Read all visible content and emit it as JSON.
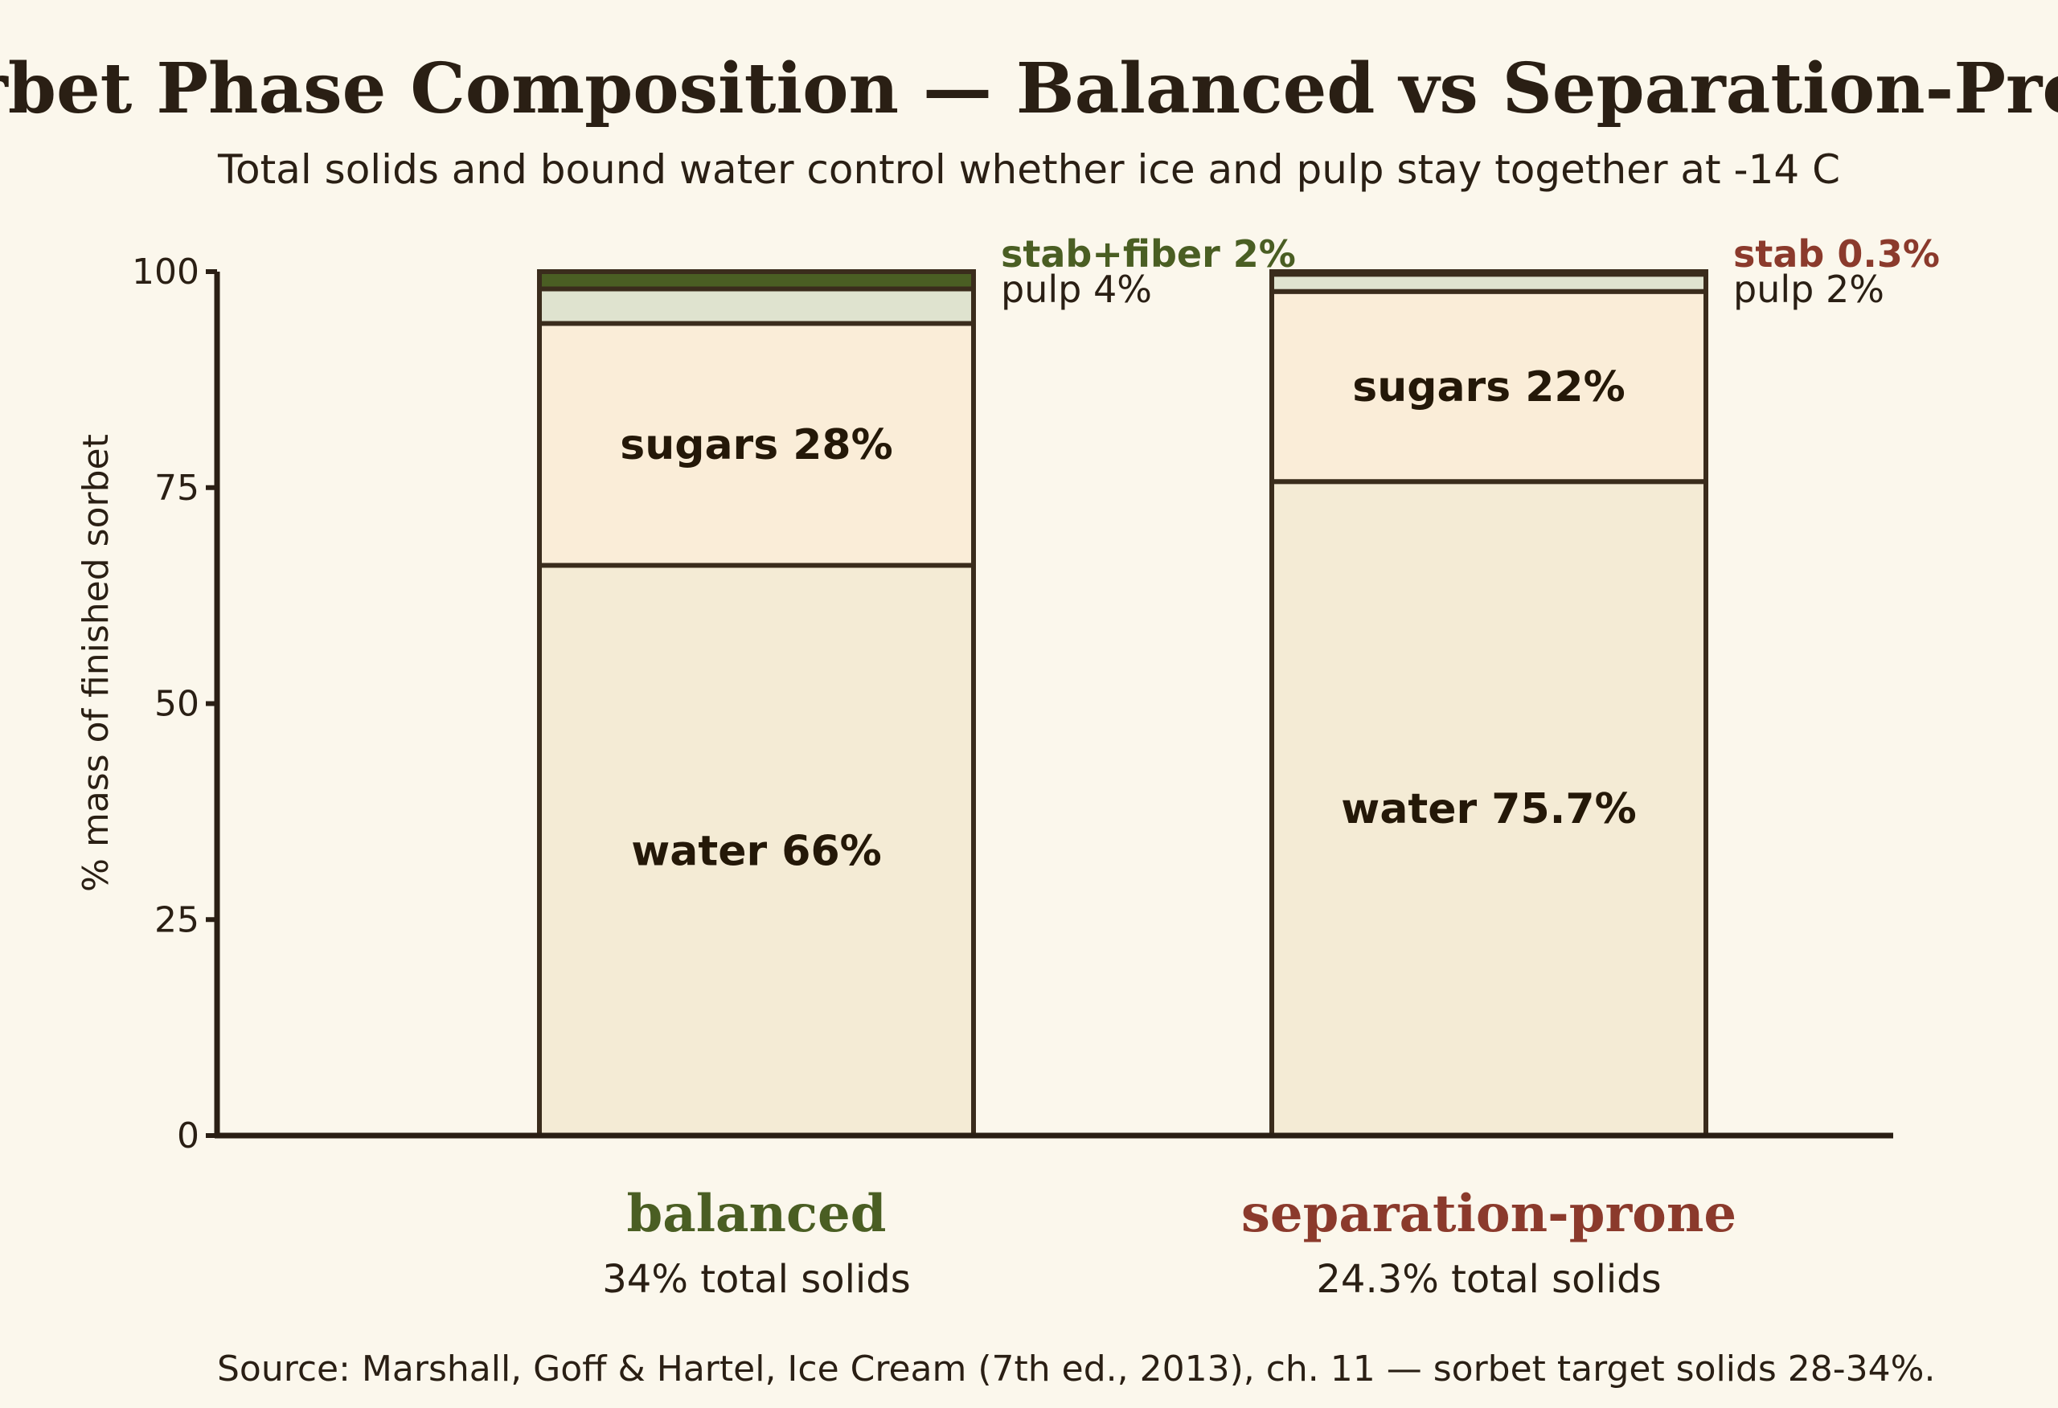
{
  "chart_data": {
    "type": "bar",
    "stacked": true,
    "title": "Sorbet Phase Composition — Balanced vs Separation-Prone",
    "subtitle": "Total solids and bound water control whether ice and pulp stay together at -14 C",
    "ylabel": "% mass of finished sorbet",
    "ylim": [
      0,
      100
    ],
    "yticks": [
      0,
      25,
      50,
      75,
      100
    ],
    "categories": [
      "balanced",
      "separation-prone"
    ],
    "category_subtitles": [
      "34% total solids",
      "24.3% total solids"
    ],
    "category_colors": [
      "#4a5e23",
      "#8b3a2c"
    ],
    "series": [
      {
        "name": "water",
        "values": [
          66,
          75.7
        ],
        "color": "#f4ebd5"
      },
      {
        "name": "sugars",
        "values": [
          28,
          22
        ],
        "color": "#faedd8"
      },
      {
        "name": "pulp",
        "values": [
          4,
          2
        ],
        "color": "#dfe3cf"
      },
      {
        "name": "stab",
        "values": [
          2,
          0.3
        ],
        "colors": [
          "#4a5e23",
          "#8b3a2c"
        ]
      }
    ],
    "segment_labels": [
      [
        "water 66%",
        "sugars 28%",
        "pulp 4%",
        "stab+fiber 2%"
      ],
      [
        "water 75.7%",
        "sugars 22%",
        "pulp 2%",
        "stab 0.3%"
      ]
    ],
    "source": "Source: Marshall, Goff & Hartel, Ice Cream (7th ed., 2013), ch. 11 — sorbet target solids 28-34%."
  }
}
